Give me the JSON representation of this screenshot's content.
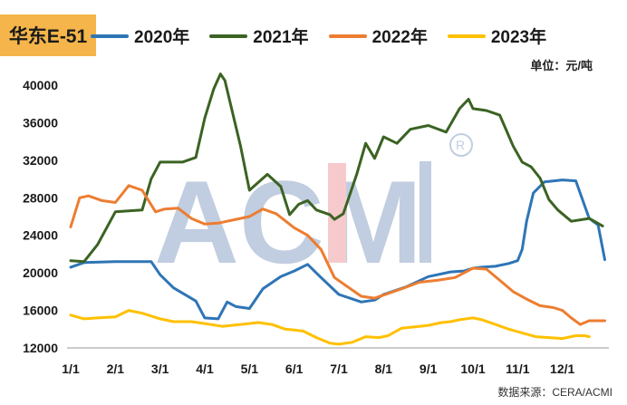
{
  "header": {
    "title": "华东E-51",
    "unit": "单位：元/吨",
    "source": "数据来源：CERA/ACMI"
  },
  "colors": {
    "2020年": "#2e75b6",
    "2021年": "#3b6323",
    "2022年": "#ed7d31",
    "2023年": "#ffc000",
    "title_bg": "#f5b54a"
  },
  "chart_data": {
    "type": "line",
    "title": "",
    "xlabel": "",
    "ylabel": "",
    "ylim": [
      12000,
      42000
    ],
    "yticks": [
      12000,
      16000,
      20000,
      24000,
      28000,
      32000,
      36000,
      40000
    ],
    "ytick_labels": [
      "12000",
      "16000",
      "20000",
      "24000",
      "28000",
      "32000",
      "36000",
      "40000"
    ],
    "xlim": [
      1,
      13
    ],
    "xticks": [
      1,
      2,
      3,
      4,
      5,
      6,
      7,
      8,
      9,
      10,
      11,
      12
    ],
    "xtick_labels": [
      "1/1",
      "2/1",
      "3/1",
      "4/1",
      "5/1",
      "6/1",
      "7/1",
      "8/1",
      "9/1",
      "10/1",
      "11/1",
      "12/1"
    ],
    "grid": false,
    "legend_position": "top",
    "series": [
      {
        "name": "2020年",
        "x": [
          1,
          1.3,
          2,
          2.8,
          3.0,
          3.3,
          3.8,
          4.0,
          4.3,
          4.5,
          4.7,
          5.0,
          5.3,
          5.7,
          6.0,
          6.3,
          6.6,
          7.0,
          7.5,
          7.8,
          8.0,
          8.5,
          9.0,
          9.5,
          9.8,
          10.0,
          10.2,
          10.5,
          10.8,
          11.0,
          11.1,
          11.2,
          11.35,
          11.6,
          12.0,
          12.3,
          12.6,
          12.8,
          12.95
        ],
        "values": [
          20600,
          21100,
          21200,
          21200,
          19800,
          18400,
          17000,
          15200,
          15100,
          16900,
          16400,
          16200,
          18300,
          19600,
          20200,
          20900,
          19500,
          17700,
          16900,
          17100,
          17700,
          18500,
          19600,
          20100,
          20200,
          20500,
          20600,
          20700,
          21000,
          21300,
          22500,
          25500,
          28500,
          29700,
          29900,
          29800,
          25800,
          25100,
          21400
        ]
      },
      {
        "name": "2021年",
        "x": [
          1,
          1.3,
          1.6,
          2.0,
          2.6,
          2.8,
          3.0,
          3.5,
          3.8,
          4.0,
          4.2,
          4.35,
          4.45,
          4.6,
          4.8,
          5.0,
          5.4,
          5.7,
          5.9,
          6.1,
          6.3,
          6.5,
          6.8,
          6.9,
          7.1,
          7.4,
          7.6,
          7.8,
          8.0,
          8.3,
          8.6,
          9.0,
          9.4,
          9.7,
          9.9,
          10.0,
          10.3,
          10.6,
          10.9,
          11.1,
          11.3,
          11.5,
          11.7,
          11.9,
          12.2,
          12.6,
          12.9
        ],
        "values": [
          21300,
          21200,
          23000,
          26500,
          26700,
          30000,
          31800,
          31800,
          32300,
          36500,
          39600,
          41200,
          40500,
          37500,
          33500,
          28800,
          30500,
          29200,
          26200,
          27300,
          27700,
          26700,
          26200,
          25700,
          26300,
          30500,
          33800,
          32200,
          34500,
          33800,
          35300,
          35700,
          35000,
          37500,
          38500,
          37500,
          37300,
          36800,
          33500,
          31800,
          31300,
          30100,
          27800,
          26700,
          25500,
          25800,
          25000
        ]
      },
      {
        "name": "2022年",
        "x": [
          1,
          1.2,
          1.4,
          1.7,
          2.0,
          2.3,
          2.6,
          2.9,
          3.1,
          3.4,
          3.7,
          4.0,
          4.3,
          4.7,
          5.0,
          5.3,
          5.6,
          6.0,
          6.3,
          6.6,
          6.9,
          7.2,
          7.5,
          7.8,
          8.1,
          8.4,
          8.8,
          9.2,
          9.6,
          10.0,
          10.3,
          10.6,
          10.9,
          11.2,
          11.5,
          11.8,
          12.0,
          12.2,
          12.4,
          12.6,
          12.95
        ],
        "values": [
          24900,
          28000,
          28200,
          27700,
          27500,
          29300,
          28800,
          26500,
          26800,
          26900,
          25800,
          25200,
          25300,
          25700,
          26000,
          26800,
          26300,
          24800,
          24000,
          22500,
          19500,
          18500,
          17500,
          17300,
          17800,
          18300,
          19000,
          19200,
          19500,
          20500,
          20400,
          19200,
          18000,
          17200,
          16500,
          16300,
          16000,
          15200,
          14500,
          14900,
          14900
        ]
      },
      {
        "name": "2023年",
        "x": [
          1,
          1.3,
          1.6,
          2.0,
          2.3,
          2.6,
          3.0,
          3.3,
          3.7,
          4.0,
          4.4,
          4.8,
          5.2,
          5.5,
          5.8,
          6.0,
          6.2,
          6.5,
          6.8,
          7.0,
          7.3,
          7.6,
          7.9,
          8.1,
          8.4,
          8.8,
          9.0,
          9.3,
          9.5,
          9.7,
          10.0,
          10.2,
          10.5,
          10.8,
          11.1,
          11.4,
          11.7,
          12.0,
          12.3,
          12.5,
          12.6
        ],
        "values": [
          15500,
          15100,
          15200,
          15300,
          16000,
          15700,
          15100,
          14800,
          14800,
          14600,
          14300,
          14500,
          14700,
          14500,
          14000,
          13900,
          13800,
          13100,
          12500,
          12400,
          12600,
          13200,
          13100,
          13300,
          14100,
          14300,
          14400,
          14700,
          14800,
          15000,
          15200,
          15000,
          14500,
          14000,
          13600,
          13200,
          13100,
          13000,
          13300,
          13300,
          13200
        ]
      }
    ]
  }
}
